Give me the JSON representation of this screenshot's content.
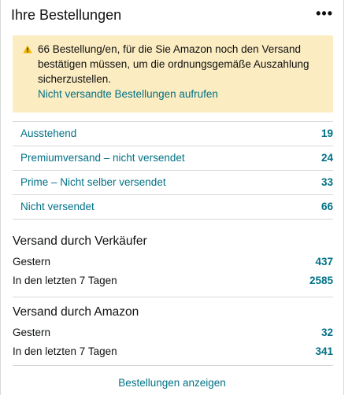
{
  "widget": {
    "title": "Ihre Bestellungen",
    "more_label": "•••"
  },
  "alert": {
    "icon": "warning-icon",
    "message": "66 Bestellung/en, für die Sie Amazon noch den Versand bestätigen müssen, um die ordnungsgemäße Auszahlung sicherzustellen.",
    "link_label": "Nicht versandte Bestellungen aufrufen"
  },
  "status_rows": [
    {
      "label": "Ausstehend",
      "count": "19"
    },
    {
      "label": "Premiumversand – nicht versendet",
      "count": "24"
    },
    {
      "label": "Prime – Nicht selber versendet",
      "count": "33"
    },
    {
      "label": "Nicht versendet",
      "count": "66"
    }
  ],
  "seller_fulfilled": {
    "title": "Versand durch Verkäufer",
    "rows": [
      {
        "label": "Gestern",
        "count": "437"
      },
      {
        "label": "In den letzten 7 Tagen",
        "count": "2585"
      }
    ]
  },
  "amazon_fulfilled": {
    "title": "Versand durch Amazon",
    "rows": [
      {
        "label": "Gestern",
        "count": "32"
      },
      {
        "label": "In den letzten 7 Tagen",
        "count": "341"
      }
    ]
  },
  "footer": {
    "link_label": "Bestellungen anzeigen"
  },
  "colors": {
    "link": "#007185",
    "alert_background": "#fcecc1",
    "divider": "#d5d9d9",
    "text": "#0f1111"
  }
}
